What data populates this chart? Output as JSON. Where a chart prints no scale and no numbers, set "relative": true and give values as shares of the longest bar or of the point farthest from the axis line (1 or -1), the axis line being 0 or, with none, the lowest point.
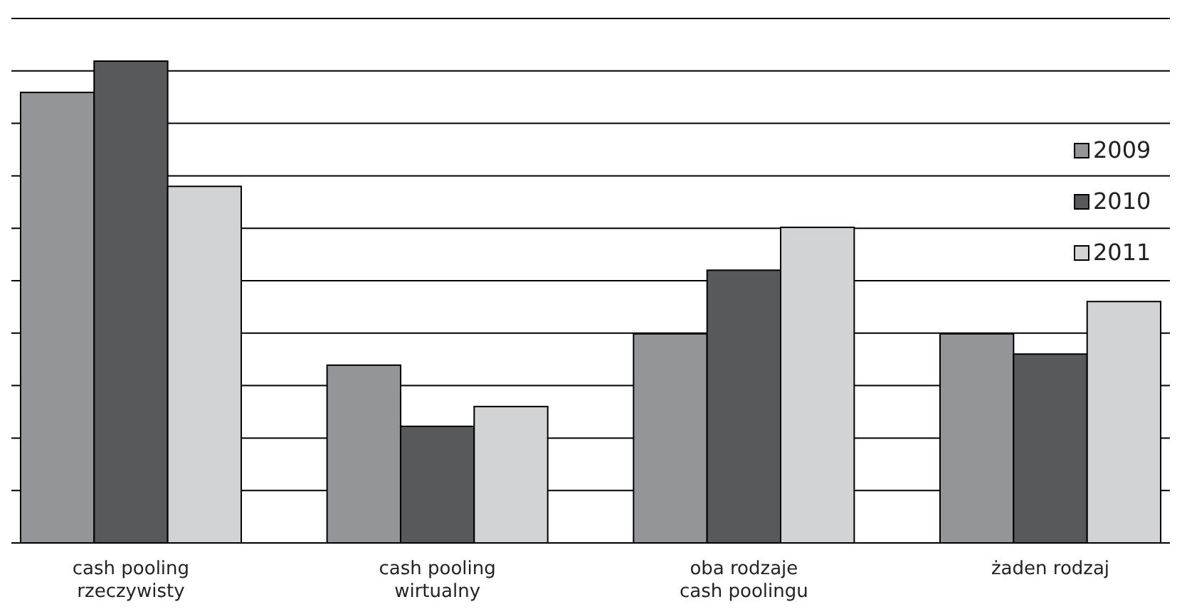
{
  "chart_data": {
    "type": "bar",
    "relative": true,
    "grid": "y",
    "legend": "top right",
    "categories": [
      "cash pooling\nrzeczywisty",
      "cash pooling\nwirtualny",
      "oba rodzaje\ncash poolingu",
      "żaden rodzaj"
    ],
    "series": [
      {
        "name": "2009",
        "color": "#939598",
        "values": [
          0.935,
          0.369,
          0.434,
          0.434
        ]
      },
      {
        "name": "2010",
        "color": "#58595b",
        "values": [
          1,
          0.242,
          0.566,
          0.392
        ]
      },
      {
        "name": "2011",
        "color": "#d1d3d4",
        "values": [
          0.74,
          0.283,
          0.655,
          0.501
        ]
      }
    ]
  }
}
